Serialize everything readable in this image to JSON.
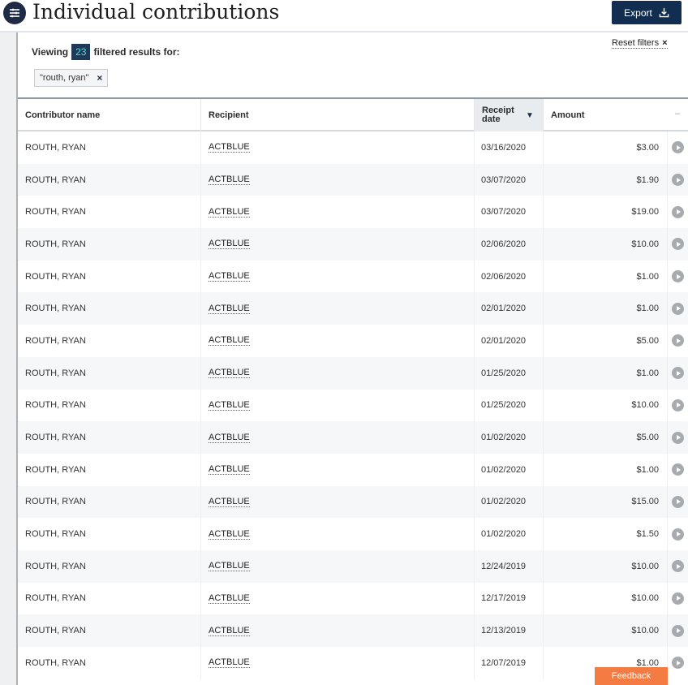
{
  "header": {
    "title": "Individual contributions",
    "menu_icon": "menu-icon",
    "export_label": "Export",
    "export_icon": "download-icon"
  },
  "filters": {
    "viewing_prefix": "Viewing",
    "result_count": "23",
    "viewing_suffix": "filtered results for:",
    "reset_label": "Reset filters",
    "reset_x": "×",
    "active_tag": "\"routh, ryan\"",
    "tag_remove": "×"
  },
  "table": {
    "columns": {
      "name": "Contributor name",
      "recipient": "Recipient",
      "date": "Receipt date",
      "amount": "Amount",
      "amount_collapse": "–"
    },
    "rows": [
      {
        "name": "ROUTH, RYAN",
        "recipient": "ACTBLUE",
        "date": "03/16/2020",
        "amount": "$3.00"
      },
      {
        "name": "ROUTH, RYAN",
        "recipient": "ACTBLUE",
        "date": "03/07/2020",
        "amount": "$1.90"
      },
      {
        "name": "ROUTH, RYAN",
        "recipient": "ACTBLUE",
        "date": "03/07/2020",
        "amount": "$19.00"
      },
      {
        "name": "ROUTH, RYAN",
        "recipient": "ACTBLUE",
        "date": "02/06/2020",
        "amount": "$10.00"
      },
      {
        "name": "ROUTH, RYAN",
        "recipient": "ACTBLUE",
        "date": "02/06/2020",
        "amount": "$1.00"
      },
      {
        "name": "ROUTH, RYAN",
        "recipient": "ACTBLUE",
        "date": "02/01/2020",
        "amount": "$1.00"
      },
      {
        "name": "ROUTH, RYAN",
        "recipient": "ACTBLUE",
        "date": "02/01/2020",
        "amount": "$5.00"
      },
      {
        "name": "ROUTH, RYAN",
        "recipient": "ACTBLUE",
        "date": "01/25/2020",
        "amount": "$1.00"
      },
      {
        "name": "ROUTH, RYAN",
        "recipient": "ACTBLUE",
        "date": "01/25/2020",
        "amount": "$10.00"
      },
      {
        "name": "ROUTH, RYAN",
        "recipient": "ACTBLUE",
        "date": "01/02/2020",
        "amount": "$5.00"
      },
      {
        "name": "ROUTH, RYAN",
        "recipient": "ACTBLUE",
        "date": "01/02/2020",
        "amount": "$1.00"
      },
      {
        "name": "ROUTH, RYAN",
        "recipient": "ACTBLUE",
        "date": "01/02/2020",
        "amount": "$15.00"
      },
      {
        "name": "ROUTH, RYAN",
        "recipient": "ACTBLUE",
        "date": "01/02/2020",
        "amount": "$1.50"
      },
      {
        "name": "ROUTH, RYAN",
        "recipient": "ACTBLUE",
        "date": "12/24/2019",
        "amount": "$10.00"
      },
      {
        "name": "ROUTH, RYAN",
        "recipient": "ACTBLUE",
        "date": "12/17/2019",
        "amount": "$10.00"
      },
      {
        "name": "ROUTH, RYAN",
        "recipient": "ACTBLUE",
        "date": "12/13/2019",
        "amount": "$10.00"
      },
      {
        "name": "ROUTH, RYAN",
        "recipient": "ACTBLUE",
        "date": "12/07/2019",
        "amount": "$1.00"
      }
    ],
    "row_action_icon": "play-circle-icon"
  },
  "feedback_label": "Feedback",
  "colors": {
    "navy": "#112e51",
    "badge_bg": "#1f3a57",
    "badge_text": "#5fd2e8",
    "feedback": "#f47b42"
  }
}
